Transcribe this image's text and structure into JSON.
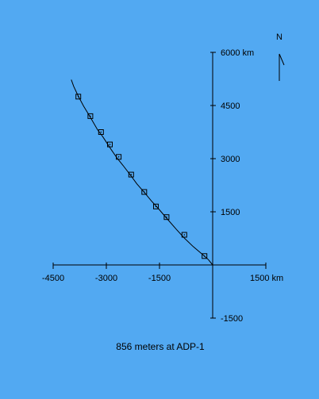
{
  "chart_data": {
    "type": "line",
    "title": "",
    "caption": "856 meters at ADP-1",
    "north_label": "N",
    "x_unit": "km",
    "y_unit": "km",
    "xlim": [
      -4500,
      1500
    ],
    "ylim": [
      -1500,
      6000
    ],
    "x_ticks": [
      {
        "value": -4500,
        "label": "-4500"
      },
      {
        "value": -3000,
        "label": "-3000"
      },
      {
        "value": -1500,
        "label": "-1500"
      },
      {
        "value": 1500,
        "label": "1500 km"
      }
    ],
    "y_ticks": [
      {
        "value": 6000,
        "label": "6000 km"
      },
      {
        "value": 4500,
        "label": "4500"
      },
      {
        "value": 3000,
        "label": "3000"
      },
      {
        "value": 1500,
        "label": "1500"
      },
      {
        "value": -1500,
        "label": "-1500"
      }
    ],
    "series": [
      {
        "path": [
          [
            0,
            0
          ],
          [
            -120,
            150
          ],
          [
            -300,
            310
          ],
          [
            -550,
            520
          ],
          [
            -800,
            760
          ],
          [
            -1020,
            1000
          ],
          [
            -1300,
            1320
          ],
          [
            -1540,
            1600
          ],
          [
            -1730,
            1810
          ],
          [
            -1920,
            2040
          ],
          [
            -2140,
            2290
          ],
          [
            -2300,
            2510
          ],
          [
            -2530,
            2810
          ],
          [
            -2700,
            3020
          ],
          [
            -2860,
            3250
          ],
          [
            -2970,
            3420
          ],
          [
            -3100,
            3620
          ],
          [
            -3250,
            3820
          ],
          [
            -3400,
            4080
          ],
          [
            -3520,
            4280
          ],
          [
            -3640,
            4480
          ],
          [
            -3800,
            4780
          ],
          [
            -3920,
            5040
          ],
          [
            -3990,
            5230
          ]
        ],
        "markers": [
          [
            -230,
            250
          ],
          [
            -800,
            850
          ],
          [
            -1300,
            1350
          ],
          [
            -1600,
            1650
          ],
          [
            -1930,
            2060
          ],
          [
            -2300,
            2550
          ],
          [
            -2650,
            3050
          ],
          [
            -2900,
            3400
          ],
          [
            -3150,
            3750
          ],
          [
            -3450,
            4200
          ],
          [
            -3790,
            4750
          ]
        ]
      }
    ]
  }
}
